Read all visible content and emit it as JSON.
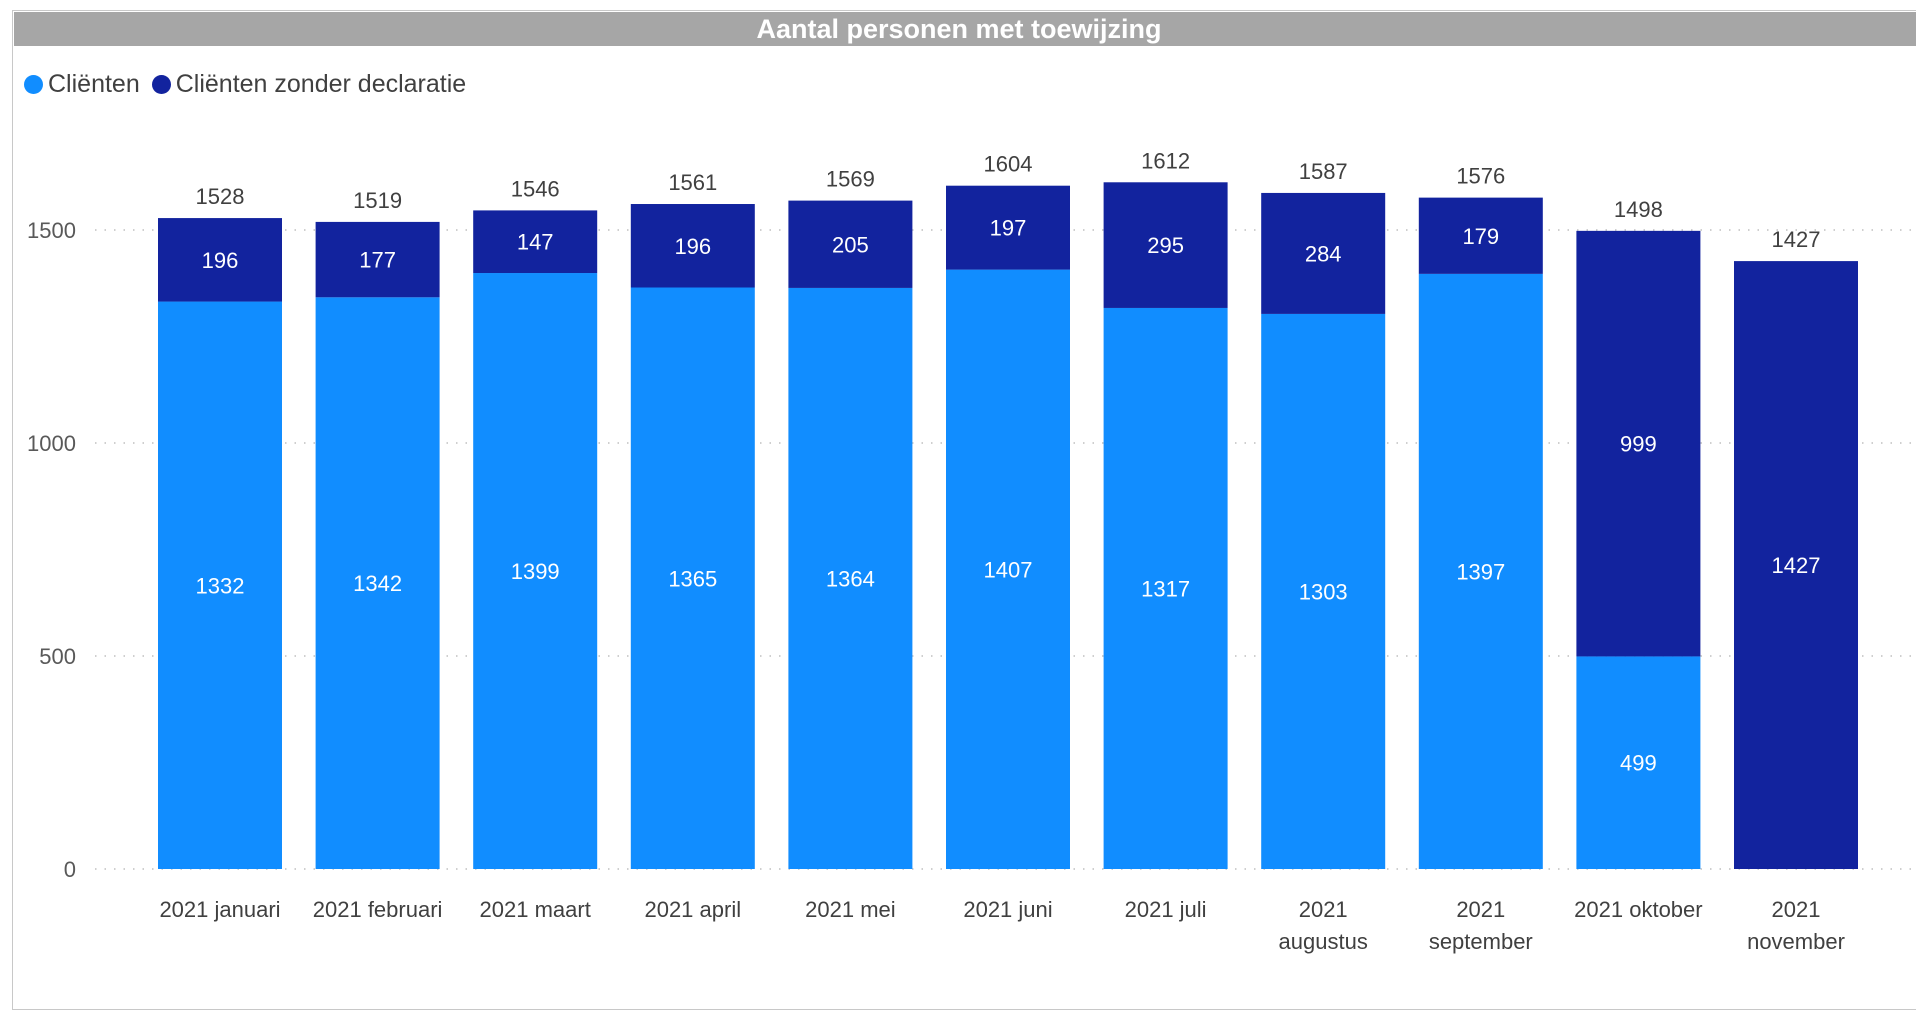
{
  "chart_data": {
    "type": "bar",
    "stacked": true,
    "title": "Aantal personen met toewijzing",
    "categories": [
      [
        "2021 januari"
      ],
      [
        "2021 februari"
      ],
      [
        "2021 maart"
      ],
      [
        "2021 april"
      ],
      [
        "2021 mei"
      ],
      [
        "2021 juni"
      ],
      [
        "2021 juli"
      ],
      [
        "2021",
        "augustus"
      ],
      [
        "2021",
        "september"
      ],
      [
        "2021 oktober"
      ],
      [
        "2021",
        "november"
      ]
    ],
    "series": [
      {
        "name": "Cliënten",
        "color": "#118DFF",
        "values": [
          1332,
          1342,
          1399,
          1365,
          1364,
          1407,
          1317,
          1303,
          1397,
          499,
          null
        ]
      },
      {
        "name": "Cliënten zonder declaratie",
        "color": "#12239E",
        "values": [
          196,
          177,
          147,
          196,
          205,
          197,
          295,
          284,
          179,
          999,
          1427
        ]
      }
    ],
    "totals": [
      1528,
      1519,
      1546,
      1561,
      1569,
      1604,
      1612,
      1587,
      1576,
      1498,
      1427
    ],
    "yticks": [
      0,
      500,
      1000,
      1500
    ],
    "ylim": [
      0,
      1600
    ],
    "grid": true,
    "legend_position": "top-left"
  }
}
